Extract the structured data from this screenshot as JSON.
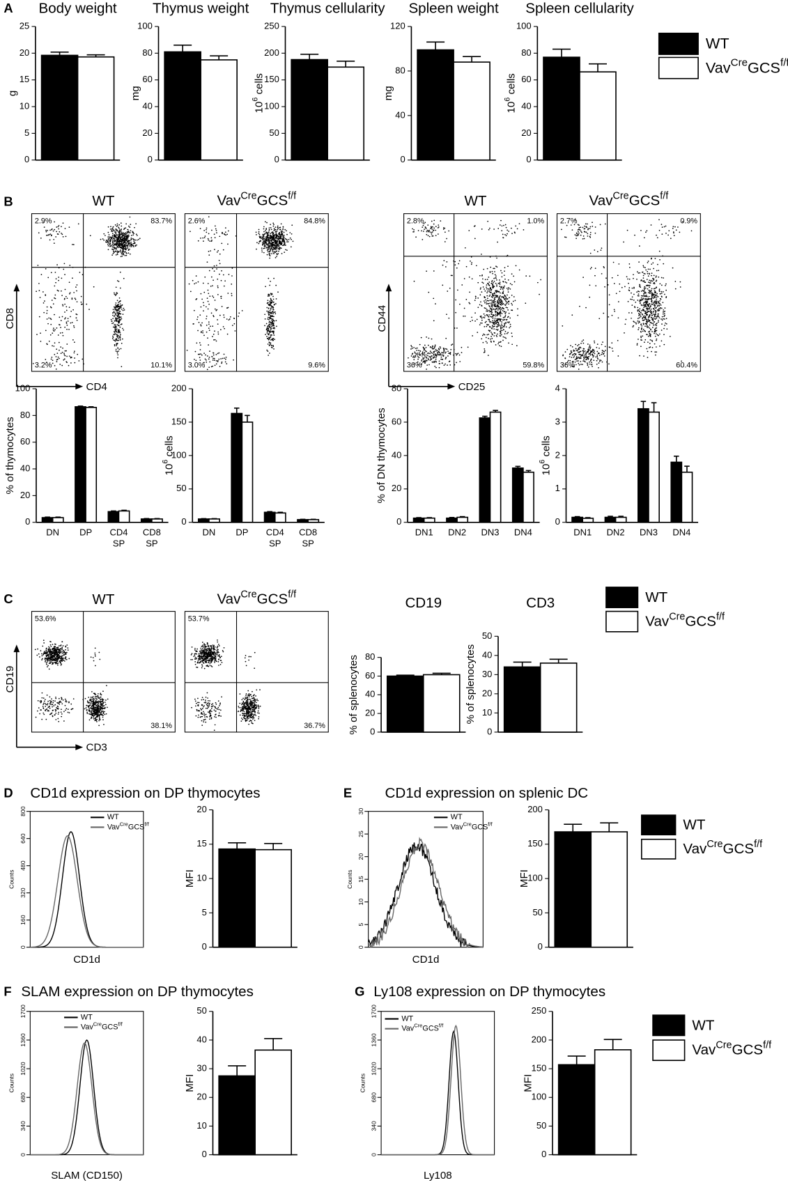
{
  "chart_data": [
    {
      "type": "bar",
      "panel": "A",
      "title": "Body weight",
      "ylabel": "g",
      "categories": [
        null
      ],
      "ylim": [
        0,
        25
      ],
      "yticks": [
        0,
        5,
        10,
        15,
        20,
        25
      ],
      "series": [
        {
          "color": "#000000",
          "values": [
            19.6
          ],
          "errors": [
            0.6
          ]
        },
        {
          "color": "#ffffff",
          "values": [
            19.3
          ],
          "errors": [
            0.4
          ]
        }
      ]
    },
    {
      "type": "bar",
      "title": "Thymus weight",
      "ylabel": "mg",
      "categories": [
        null
      ],
      "ylim": [
        0,
        100
      ],
      "yticks": [
        0,
        20,
        40,
        60,
        80,
        100
      ],
      "series": [
        {
          "color": "#000000",
          "values": [
            81
          ],
          "errors": [
            5
          ]
        },
        {
          "color": "#ffffff",
          "values": [
            75
          ],
          "errors": [
            3
          ]
        }
      ]
    },
    {
      "type": "bar",
      "title": "Thymus cellularity",
      "ylabel": [
        "10",
        "6",
        " cells"
      ],
      "categories": [
        null
      ],
      "ylim": [
        0,
        250
      ],
      "yticks": [
        0,
        50,
        100,
        150,
        200,
        250
      ],
      "series": [
        {
          "color": "#000000",
          "values": [
            188
          ],
          "errors": [
            10
          ]
        },
        {
          "color": "#ffffff",
          "values": [
            174
          ],
          "errors": [
            11
          ]
        }
      ]
    },
    {
      "type": "bar",
      "title": "Spleen weight",
      "ylabel": "mg",
      "categories": [
        null
      ],
      "ylim": [
        0,
        120
      ],
      "yticks": [
        0,
        40,
        80,
        120
      ],
      "series": [
        {
          "color": "#000000",
          "values": [
            99
          ],
          "errors": [
            7
          ]
        },
        {
          "color": "#ffffff",
          "values": [
            88
          ],
          "errors": [
            5
          ]
        }
      ]
    },
    {
      "type": "bar",
      "title": "Spleen cellularity",
      "ylabel": [
        "10",
        "6",
        " cells"
      ],
      "categories": [
        null
      ],
      "ylim": [
        0,
        100
      ],
      "yticks": [
        0,
        20,
        40,
        60,
        80,
        100
      ],
      "legend": "right",
      "series": [
        {
          "name": "WT",
          "color": "#000000",
          "values": [
            77
          ],
          "errors": [
            6
          ]
        },
        {
          "name": [
            "Vav",
            "Cre",
            "GCS",
            "f/f"
          ],
          "color": "#ffffff",
          "values": [
            66
          ],
          "errors": [
            6
          ]
        }
      ]
    },
    {
      "type": "flow",
      "panel": "B",
      "title": "WT",
      "xlabel": "CD4",
      "ylabel": "CD8",
      "quadrants": {
        "upper_left": "2.9%",
        "upper_right": "83.7%",
        "lower_left": "3.2%",
        "lower_right": "10.1%"
      }
    },
    {
      "type": "flow",
      "title": [
        "Vav",
        "Cre",
        "GCS",
        "f/f"
      ],
      "quadrants": {
        "upper_left": "2.6%",
        "upper_right": "84.8%",
        "lower_left": "3.0%",
        "lower_right": "9.6%"
      }
    },
    {
      "type": "flow",
      "title": "WT",
      "xlabel": "CD25",
      "ylabel": "CD44",
      "quadrants": {
        "upper_left": "2.8%",
        "upper_right": "1.0%",
        "lower_left": "36%",
        "lower_right": "59.8%"
      }
    },
    {
      "type": "flow",
      "title": [
        "Vav",
        "Cre",
        "GCS",
        "f/f"
      ],
      "quadrants": {
        "upper_left": "2.7%",
        "upper_right": "0.9%",
        "lower_left": "36%",
        "lower_right": "60.4%"
      }
    },
    {
      "type": "bar",
      "ylabel": "% of thymocytes",
      "categories": [
        "DN",
        "DP",
        [
          "CD4",
          "SP"
        ],
        [
          "CD8",
          "SP"
        ]
      ],
      "ylim": [
        0,
        100
      ],
      "yticks": [
        0,
        20,
        40,
        60,
        80,
        100
      ],
      "series": [
        {
          "color": "#000000",
          "values": [
            3.5,
            86.5,
            8,
            2.5
          ],
          "errors": [
            0.4,
            0.5,
            0.5,
            0.3
          ]
        },
        {
          "color": "#ffffff",
          "values": [
            3.5,
            86,
            8.5,
            2.5
          ],
          "errors": [
            0.4,
            0.5,
            0.5,
            0.3
          ]
        }
      ]
    },
    {
      "type": "bar",
      "ylabel": [
        "10",
        "6",
        " cells"
      ],
      "categories": [
        "DN",
        "DP",
        [
          "CD4",
          "SP"
        ],
        [
          "CD8",
          "SP"
        ]
      ],
      "ylim": [
        0,
        200
      ],
      "yticks": [
        0,
        50,
        100,
        150,
        200
      ],
      "series": [
        {
          "color": "#000000",
          "values": [
            5,
            163,
            15,
            4
          ],
          "errors": [
            0.5,
            8,
            1,
            0.5
          ]
        },
        {
          "color": "#ffffff",
          "values": [
            5,
            150,
            14,
            4
          ],
          "errors": [
            0.5,
            10,
            1,
            0.5
          ]
        }
      ]
    },
    {
      "type": "bar",
      "ylabel": "% of DN thymocytes",
      "categories": [
        "DN1",
        "DN2",
        "DN3",
        "DN4"
      ],
      "ylim": [
        0,
        80
      ],
      "yticks": [
        0,
        20,
        40,
        60,
        80
      ],
      "series": [
        {
          "color": "#000000",
          "values": [
            2.5,
            2.5,
            62.5,
            32.5
          ],
          "errors": [
            0.3,
            0.4,
            1,
            1
          ]
        },
        {
          "color": "#ffffff",
          "values": [
            2.5,
            3,
            66,
            30
          ],
          "errors": [
            0.3,
            0.4,
            1,
            1
          ]
        }
      ]
    },
    {
      "type": "bar",
      "ylabel": [
        "10",
        "6",
        " cells"
      ],
      "categories": [
        "DN1",
        "DN2",
        "DN3",
        "DN4"
      ],
      "ylim": [
        0,
        4
      ],
      "yticks": [
        0,
        1,
        2,
        3,
        4
      ],
      "series": [
        {
          "color": "#000000",
          "values": [
            0.15,
            0.15,
            3.4,
            1.8
          ],
          "errors": [
            0.02,
            0.03,
            0.22,
            0.18
          ]
        },
        {
          "color": "#ffffff",
          "values": [
            0.12,
            0.15,
            3.3,
            1.5
          ],
          "errors": [
            0.02,
            0.03,
            0.28,
            0.18
          ]
        }
      ]
    },
    {
      "type": "flow",
      "panel": "C",
      "title": "WT",
      "xlabel": "CD3",
      "ylabel": "CD19",
      "quadrants": {
        "upper_left": "53.6%",
        "lower_right": "38.1%"
      }
    },
    {
      "type": "flow",
      "title": [
        "Vav",
        "Cre",
        "GCS",
        "f/f"
      ],
      "quadrants": {
        "upper_left": "53.7%",
        "lower_right": "36.7%"
      }
    },
    {
      "type": "bar",
      "title": "CD19",
      "ylabel": "% of splenocytes",
      "categories": [
        null
      ],
      "ylim": [
        0,
        80
      ],
      "yticks": [
        0,
        20,
        40,
        60,
        80
      ],
      "series": [
        {
          "color": "#000000",
          "values": [
            60
          ],
          "errors": [
            1
          ]
        },
        {
          "color": "#ffffff",
          "values": [
            61.5
          ],
          "errors": [
            1.5
          ]
        }
      ]
    },
    {
      "type": "bar",
      "title": "CD3",
      "ylabel": "% of splenocytes",
      "categories": [
        null
      ],
      "ylim": [
        0,
        50
      ],
      "yticks": [
        0,
        10,
        20,
        30,
        40,
        50
      ],
      "legend": "right",
      "series": [
        {
          "name": "WT",
          "color": "#000000",
          "values": [
            34
          ],
          "errors": [
            2.5
          ]
        },
        {
          "name": [
            "Vav",
            "Cre",
            "GCS",
            "f/f"
          ],
          "color": "#ffffff",
          "values": [
            36
          ],
          "errors": [
            2
          ]
        }
      ]
    },
    {
      "type": "cytometry-histogram",
      "panel": "D",
      "title": "CD1d expression on DP thymocytes",
      "xlabel": "CD1d",
      "ylabel": "Counts",
      "ylim": [
        0,
        800
      ],
      "yticks": [
        0,
        160,
        320,
        480,
        640,
        800
      ],
      "series": [
        {
          "name": "WT",
          "color": "#000000"
        },
        {
          "name": [
            "Vav",
            "Cre",
            "GCS",
            "f/f"
          ],
          "color": "#666666"
        }
      ]
    },
    {
      "type": "bar",
      "ylabel": "MFI",
      "categories": [
        null
      ],
      "ylim": [
        0,
        20
      ],
      "yticks": [
        0,
        5,
        10,
        15,
        20
      ],
      "series": [
        {
          "color": "#000000",
          "values": [
            14.3
          ],
          "errors": [
            0.9
          ]
        },
        {
          "color": "#ffffff",
          "values": [
            14.2
          ],
          "errors": [
            0.9
          ]
        }
      ]
    },
    {
      "type": "cytometry-histogram",
      "panel": "E",
      "title": "CD1d expression on splenic DC",
      "xlabel": "CD1d",
      "ylabel": "Counts",
      "ylim": [
        0,
        30
      ],
      "yticks": [
        0,
        5,
        10,
        15,
        20,
        25,
        30
      ],
      "series": [
        {
          "name": "WT",
          "color": "#000000"
        },
        {
          "name": [
            "Vav",
            "Cre",
            "GCS",
            "f/f"
          ],
          "color": "#666666"
        }
      ]
    },
    {
      "type": "bar",
      "ylabel": "MFI",
      "categories": [
        null
      ],
      "ylim": [
        0,
        200
      ],
      "yticks": [
        0,
        50,
        100,
        150,
        200
      ],
      "legend": "right",
      "series": [
        {
          "name": "WT",
          "color": "#000000",
          "values": [
            168
          ],
          "errors": [
            11
          ]
        },
        {
          "name": [
            "Vav",
            "Cre",
            "GCS",
            "f/f"
          ],
          "color": "#ffffff",
          "values": [
            168
          ],
          "errors": [
            13
          ]
        }
      ]
    },
    {
      "type": "cytometry-histogram",
      "panel": "F",
      "title": "SLAM expression on DP thymocytes",
      "xlabel": "SLAM (CD150)",
      "ylabel": "Counts",
      "ylim": [
        0,
        1700
      ],
      "yticks": [
        0,
        340,
        680,
        1020,
        1360,
        1700
      ],
      "series": [
        {
          "name": "WT",
          "color": "#000000"
        },
        {
          "name": [
            "Vav",
            "Cre",
            "GCS",
            "f/f"
          ],
          "color": "#666666"
        }
      ]
    },
    {
      "type": "bar",
      "ylabel": "MFI",
      "categories": [
        null
      ],
      "ylim": [
        0,
        50
      ],
      "yticks": [
        0,
        10,
        20,
        30,
        40,
        50
      ],
      "series": [
        {
          "color": "#000000",
          "values": [
            27.5
          ],
          "errors": [
            3.5
          ]
        },
        {
          "color": "#ffffff",
          "values": [
            36.5
          ],
          "errors": [
            4
          ]
        }
      ]
    },
    {
      "type": "cytometry-histogram",
      "panel": "G",
      "title": "Ly108 expression on DP thymocytes",
      "xlabel": "Ly108",
      "ylabel": "Counts",
      "ylim": [
        0,
        1700
      ],
      "yticks": [
        0,
        340,
        680,
        1020,
        1360,
        1700
      ],
      "series": [
        {
          "name": "WT",
          "color": "#000000"
        },
        {
          "name": [
            "Vav",
            "Cre",
            "GCS",
            "f/f"
          ],
          "color": "#666666"
        }
      ]
    },
    {
      "type": "bar",
      "ylabel": "MFI",
      "categories": [
        null
      ],
      "ylim": [
        0,
        250
      ],
      "yticks": [
        0,
        50,
        100,
        150,
        200,
        250
      ],
      "legend": "right",
      "series": [
        {
          "name": "WT",
          "color": "#000000",
          "values": [
            157
          ],
          "errors": [
            15
          ]
        },
        {
          "name": [
            "Vav",
            "Cre",
            "GCS",
            "f/f"
          ],
          "color": "#ffffff",
          "values": [
            183
          ],
          "errors": [
            18
          ]
        }
      ]
    }
  ]
}
